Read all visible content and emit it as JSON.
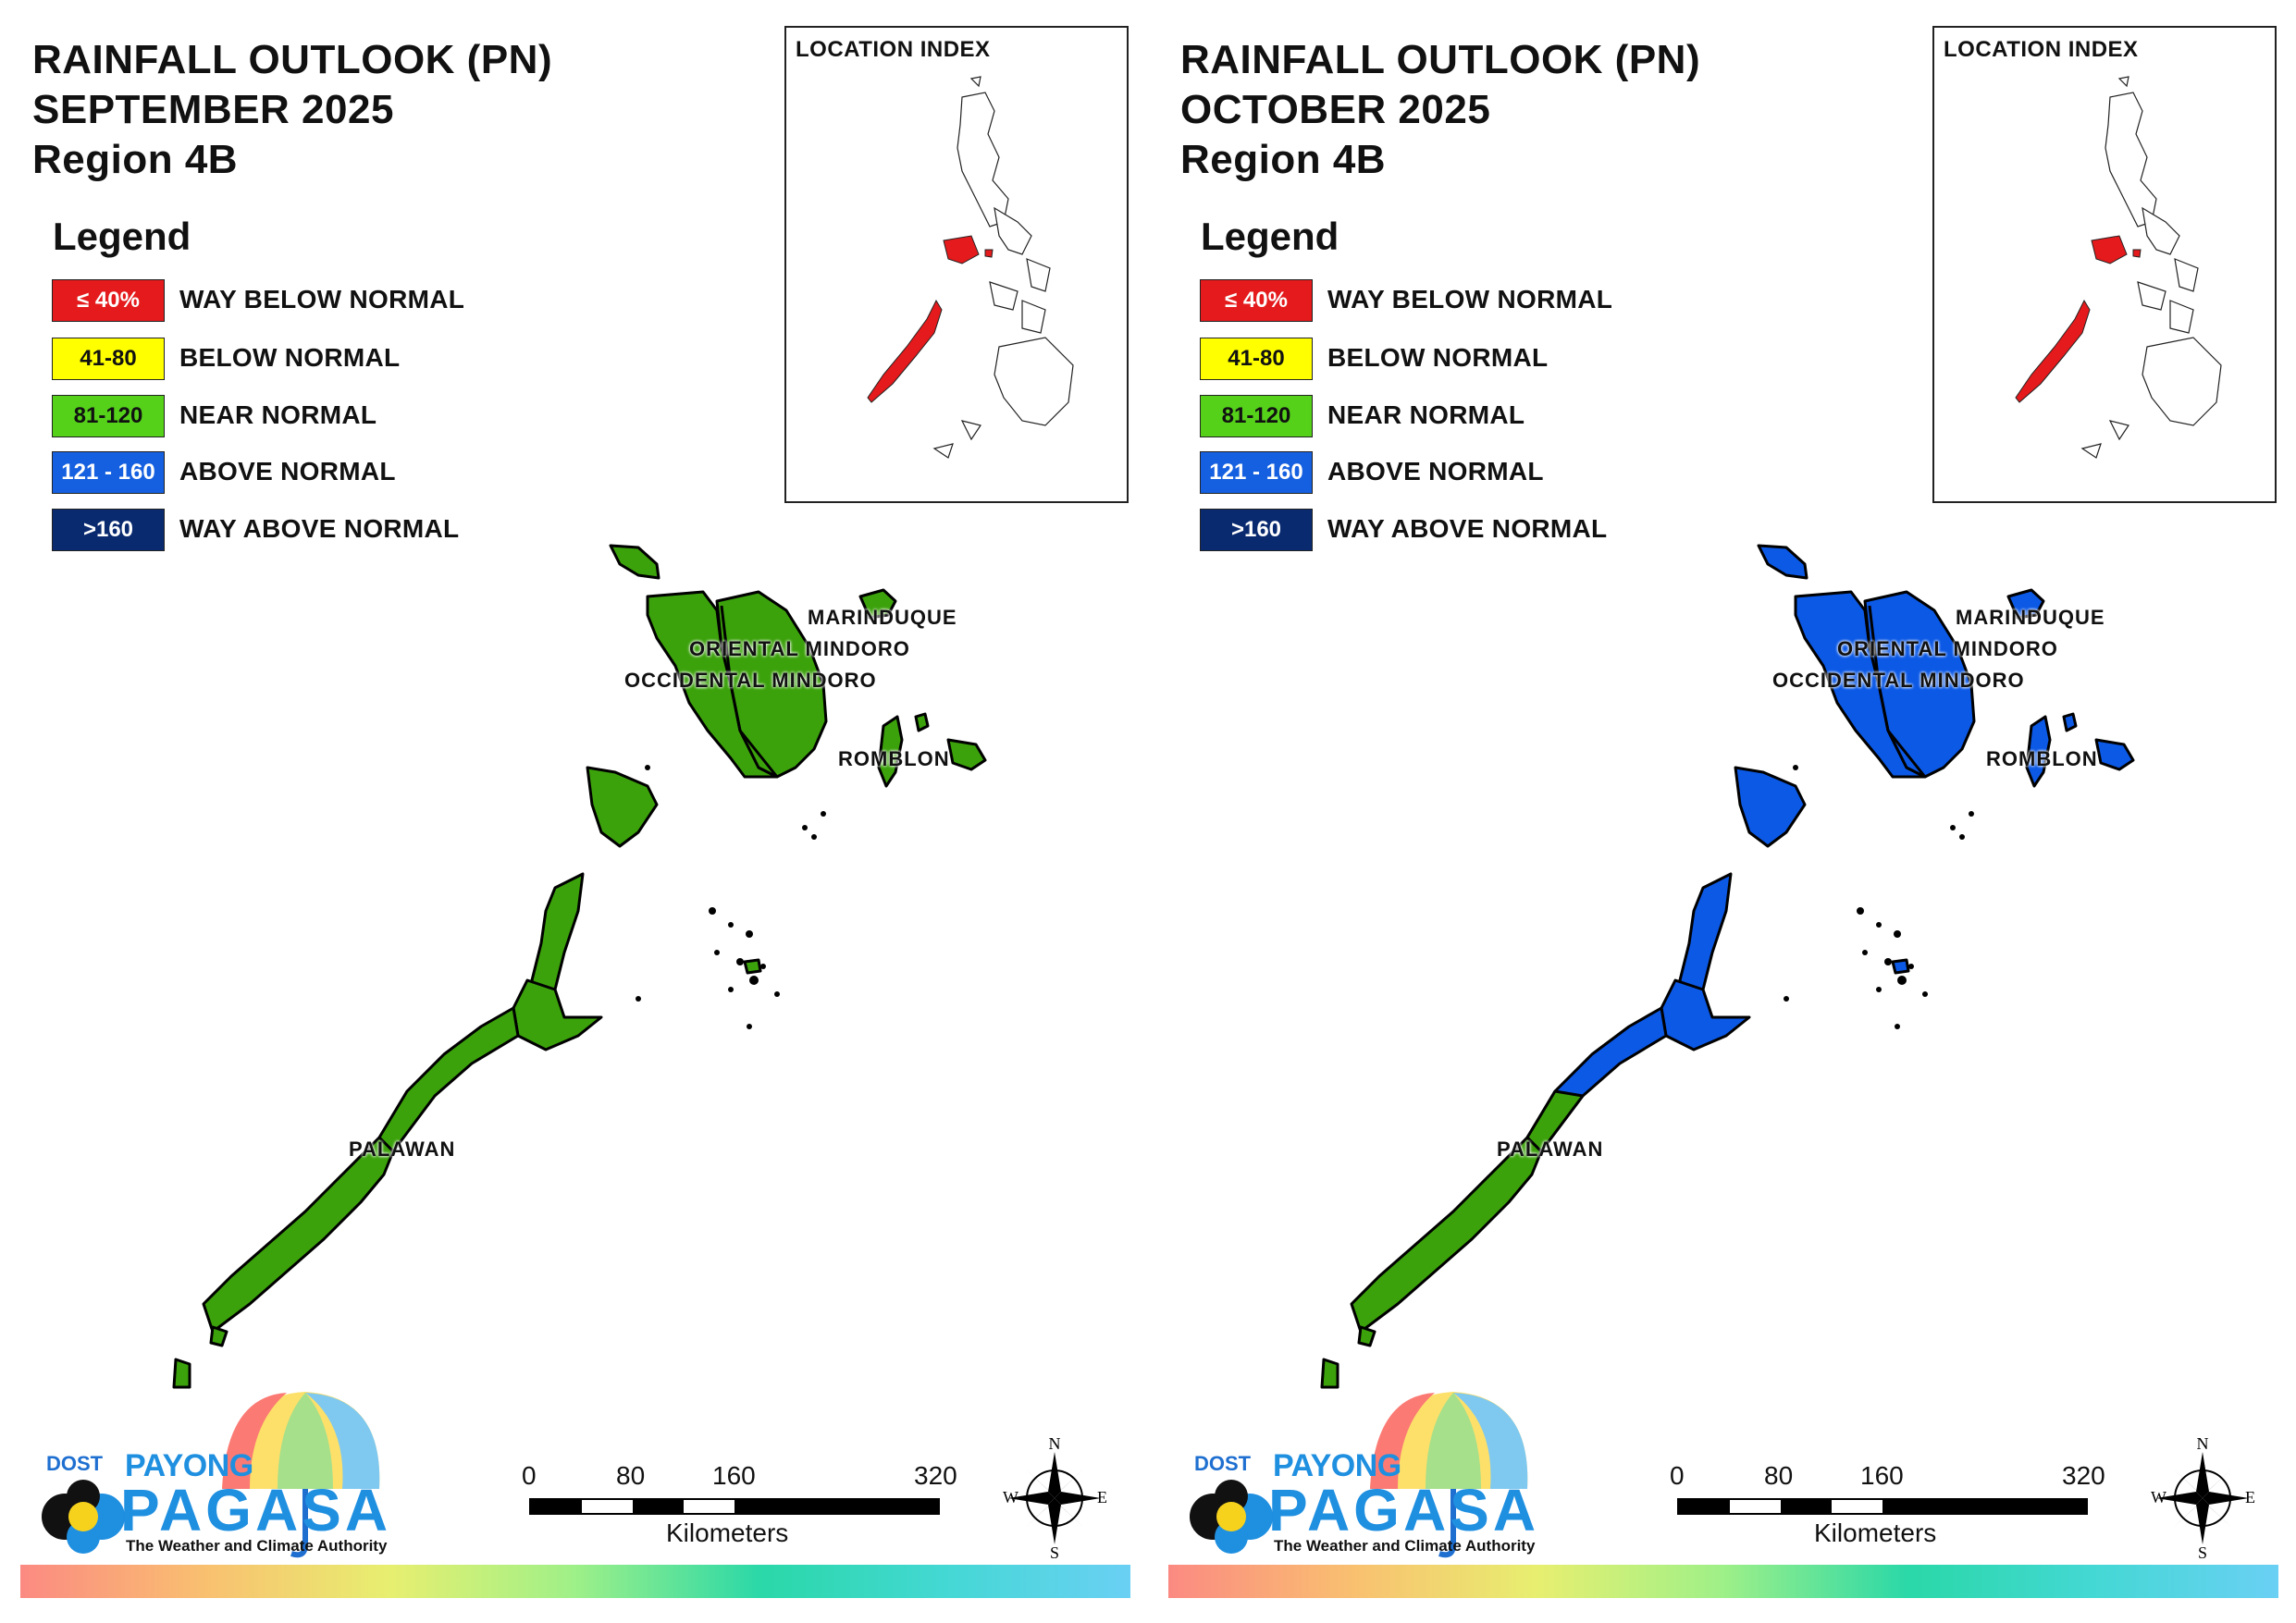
{
  "panels": [
    {
      "title": {
        "line1": "RAINFALL OUTLOOK (PN)",
        "line2": "SEPTEMBER 2025",
        "line3": "Region 4B"
      },
      "regions": {
        "marinduque": "near_normal",
        "oriental_mindoro": "near_normal",
        "occidental_mindoro": "near_normal",
        "romblon": "near_normal",
        "palawan_north": "near_normal",
        "palawan_south": "near_normal"
      }
    },
    {
      "title": {
        "line1": "RAINFALL OUTLOOK (PN)",
        "line2": "OCTOBER 2025",
        "line3": "Region 4B"
      },
      "regions": {
        "marinduque": "above_normal",
        "oriental_mindoro": "above_normal",
        "occidental_mindoro": "above_normal",
        "romblon": "above_normal",
        "palawan_north": "above_normal",
        "palawan_south": "near_normal"
      }
    }
  ],
  "legend": {
    "title": "Legend",
    "items": [
      {
        "key": "way_below_normal",
        "range": "≤ 40%",
        "label": "WAY BELOW NORMAL",
        "color": "#e41a1c",
        "text_color": "#ffffff"
      },
      {
        "key": "below_normal",
        "range": "41-80",
        "label": "BELOW NORMAL",
        "color": "#ffff00",
        "text_color": "#111111"
      },
      {
        "key": "near_normal",
        "range": "81-120",
        "label": "NEAR NORMAL",
        "color": "#55d11a",
        "text_color": "#111111"
      },
      {
        "key": "above_normal",
        "range": "121 - 160",
        "label": "ABOVE NORMAL",
        "color": "#1560e0",
        "text_color": "#ffffff"
      },
      {
        "key": "way_above_normal",
        "range": ">160",
        "label": "WAY ABOVE NORMAL",
        "color": "#0a2a70",
        "text_color": "#ffffff"
      }
    ]
  },
  "map_colors": {
    "near_normal": "#3ca20c",
    "above_normal": "#0c59e6"
  },
  "region_labels": {
    "marinduque": "MARINDUQUE",
    "oriental_mindoro": "ORIENTAL MINDORO",
    "occidental_mindoro": "OCCIDENTAL MINDORO",
    "romblon": "ROMBLON",
    "palawan": "PALAWAN"
  },
  "location_index": {
    "title": "LOCATION INDEX",
    "highlight_color": "#e41a1c"
  },
  "scale_bar": {
    "ticks": [
      "0",
      "80",
      "160",
      "320"
    ],
    "unit": "Kilometers"
  },
  "compass": {
    "n": "N",
    "s": "S",
    "e": "E",
    "w": "W"
  },
  "logo": {
    "dost": "DOST",
    "payong": "PAYONG",
    "pagasa": "PAGASA",
    "tagline": "The Weather and Climate Authority"
  }
}
